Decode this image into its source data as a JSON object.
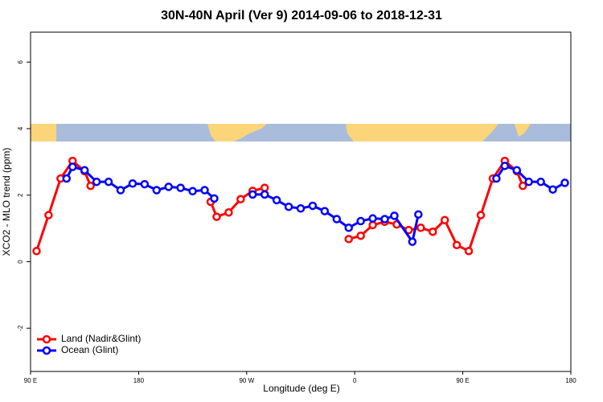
{
  "chart_data": {
    "type": "line",
    "title": "30N-40N April (Ver 9)   2014-09-06 to 2018-12-31",
    "x_label": "Longitude (deg E)",
    "y_label": "XCO2 - MLO trend (ppm)",
    "xlim": [
      90,
      540
    ],
    "xticks": [
      {
        "value": 90,
        "label": "90 E"
      },
      {
        "value": 180,
        "label": "180"
      },
      {
        "value": 270,
        "label": "90 W"
      },
      {
        "value": 360,
        "label": "0"
      },
      {
        "value": 450,
        "label": "90 E"
      },
      {
        "value": 540,
        "label": "180"
      }
    ],
    "ylim": [
      -3.3,
      6.9
    ],
    "yticks": [
      -2,
      0,
      2,
      4,
      6
    ],
    "legend": "bottom-left",
    "series": [
      {
        "name": "Land (Nadir&Glint)",
        "color": "#ff0000",
        "x": [
          95,
          105,
          115,
          125,
          135,
          140,
          null,
          240,
          245,
          255,
          265,
          275,
          285,
          null,
          355,
          365,
          375,
          385,
          395,
          405,
          415,
          425,
          435,
          445,
          455,
          465,
          475,
          485,
          495,
          500
        ],
        "values": [
          0.32,
          1.4,
          2.5,
          3.03,
          2.72,
          2.28,
          null,
          1.8,
          1.35,
          1.48,
          1.88,
          2.13,
          2.22,
          null,
          0.68,
          0.78,
          1.1,
          1.2,
          1.12,
          0.95,
          1.02,
          0.9,
          1.25,
          0.5,
          0.32,
          1.4,
          2.5,
          3.03,
          2.72,
          2.28
        ]
      },
      {
        "name": "Ocean (Glint)",
        "color": "#0000ff",
        "x": [
          120,
          125,
          135,
          145,
          155,
          165,
          175,
          185,
          195,
          205,
          215,
          225,
          235,
          243,
          null,
          275,
          285,
          295,
          305,
          315,
          325,
          335,
          345,
          355,
          365,
          375,
          385,
          393,
          408,
          413,
          null,
          478,
          485,
          495,
          505,
          515,
          525,
          535
        ],
        "values": [
          2.5,
          2.85,
          2.75,
          2.4,
          2.4,
          2.15,
          2.35,
          2.33,
          2.15,
          2.25,
          2.22,
          2.12,
          2.15,
          1.9,
          null,
          2.02,
          2.02,
          1.85,
          1.65,
          1.6,
          1.68,
          1.52,
          1.28,
          1.02,
          1.22,
          1.3,
          1.28,
          1.38,
          0.6,
          1.42,
          null,
          2.5,
          2.88,
          2.75,
          2.4,
          2.4,
          2.17,
          2.37
        ]
      }
    ]
  }
}
